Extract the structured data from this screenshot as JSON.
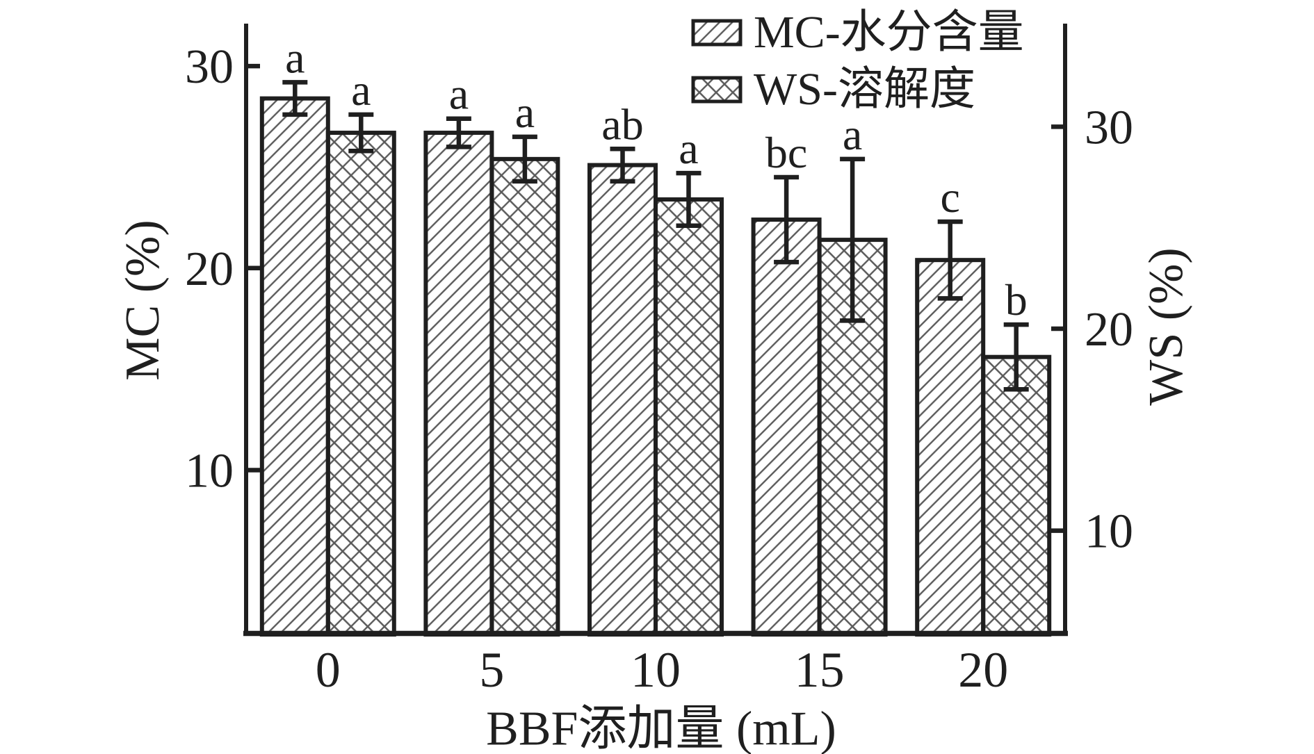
{
  "figure": {
    "background": "#ffffff"
  },
  "chart_data": {
    "type": "bar",
    "categories": [
      "0",
      "5",
      "10",
      "15",
      "20"
    ],
    "xlabel": "BBF添加量 (mL)",
    "ylabel_left": "MC (%)",
    "ylabel_right": "WS (%)",
    "ylim_left": [
      2,
      32
    ],
    "ylim_right": [
      5,
      35
    ],
    "yticks_left": [
      10,
      20,
      30
    ],
    "yticks_right": [
      10,
      20,
      30
    ],
    "grid": false,
    "legend_position": "top-right",
    "series": [
      {
        "name": "MC-水分含量",
        "short_name": "MC",
        "axis": "left",
        "hatch": "diagonal",
        "values": [
          28.4,
          26.7,
          25.1,
          22.4,
          20.4
        ],
        "errors": [
          0.8,
          0.7,
          0.8,
          2.1,
          1.9
        ],
        "sig_letters": [
          "a",
          "a",
          "ab",
          "bc",
          "c"
        ]
      },
      {
        "name": "WS-溶解度",
        "short_name": "WS",
        "axis": "right",
        "hatch": "crosshatch",
        "values": [
          29.7,
          28.4,
          26.4,
          24.4,
          18.6
        ],
        "errors": [
          0.9,
          1.1,
          1.3,
          4.0,
          1.6
        ],
        "sig_letters": [
          "a",
          "a",
          "a",
          "a",
          "b"
        ]
      }
    ],
    "colors": {
      "outline": "#1f1f1f",
      "hatch": "#5a5a5a",
      "text": "#1f1f1f",
      "background": "#ffffff"
    }
  }
}
